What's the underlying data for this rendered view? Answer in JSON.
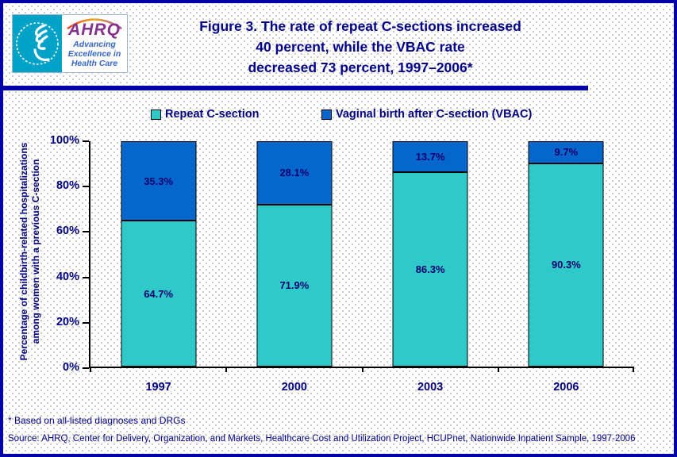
{
  "header": {
    "logo": {
      "org_abbr": "AHRQ",
      "tagline_lines": [
        "Advancing",
        "Excellence in",
        "Health Care"
      ]
    },
    "title_lines": [
      "Figure 3. The rate of repeat C-sections increased",
      "40 percent, while the VBAC rate",
      "decreased 73 percent, 1997–2006*"
    ]
  },
  "chart_data": {
    "type": "bar",
    "stacked": true,
    "categories": [
      "1997",
      "2000",
      "2003",
      "2006"
    ],
    "series": [
      {
        "name": "Repeat C-section",
        "color": "#30c9c9",
        "values": [
          64.7,
          71.9,
          86.3,
          90.3
        ]
      },
      {
        "name": "Vaginal birth after C-section (VBAC)",
        "color": "#0566cb",
        "values": [
          35.3,
          28.1,
          13.7,
          9.7
        ]
      }
    ],
    "value_labels": [
      [
        "64.7%",
        "71.9%",
        "86.3%",
        "90.3%"
      ],
      [
        "35.3%",
        "28.1%",
        "13.7%",
        "9.7%"
      ]
    ],
    "ylabel_lines": [
      "Percentage of childbirth-related hospitalizations",
      "among women with a previous C-section"
    ],
    "yticks": [
      "0%",
      "20%",
      "40%",
      "60%",
      "80%",
      "100%"
    ],
    "ylim": [
      0,
      100
    ],
    "grid": false,
    "legend_position": "top"
  },
  "footnote": "* Based on all-listed diagnoses and DRGs",
  "source": "Source: AHRQ, Center for Delivery, Organization, and Markets, Healthcare Cost and Utilization Project, HCUPnet, Nationwide Inpatient Sample, 1997-2006",
  "colors": {
    "accent_navy": "#0101a8",
    "text_navy": "#000080",
    "title_navy": "#00008b",
    "teal": "#30c9c9",
    "blue": "#0566cb",
    "logo_cyan": "#00a2c8",
    "logo_purple": "#84328c",
    "logo_blue": "#3366cc"
  }
}
